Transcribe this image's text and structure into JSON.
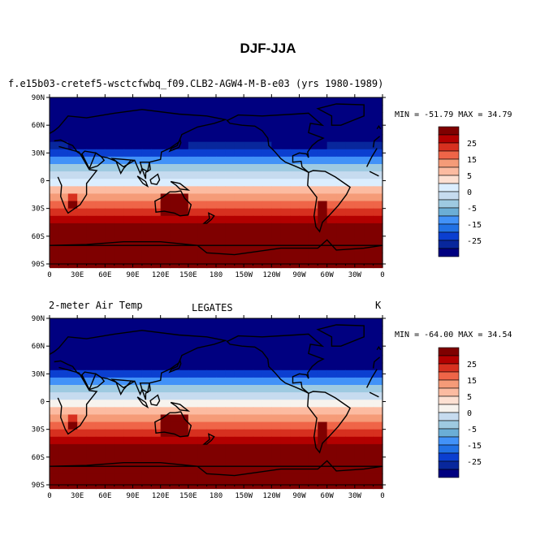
{
  "figure_title": "DJF-JJA",
  "panels": [
    {
      "left_title": "f.e15b03-cretef5-wsctcfwbq_f09.CLB2-AGW4-M-B-e03 (yrs 1980-1989)",
      "center_title": "",
      "right_label": "",
      "min_max": "MIN = -51.79 MAX =  34.79"
    },
    {
      "left_title": "2-meter Air Temp",
      "center_title": "LEGATES",
      "right_label": "K",
      "min_max": "MIN = -64.00 MAX =  34.54"
    }
  ],
  "chart_data": [
    {
      "type": "heatmap",
      "projection": "cylindrical equidistant, centered 180",
      "xlim": [
        0,
        360
      ],
      "ylim": [
        -90,
        90
      ],
      "xticklabels": [
        "0",
        "30E",
        "60E",
        "90E",
        "120E",
        "150E",
        "180",
        "150W",
        "120W",
        "90W",
        "60W",
        "30W",
        "0"
      ],
      "yticklabels": [
        "90N",
        "60N",
        "30N",
        "0",
        "30S",
        "60S",
        "90S"
      ],
      "min": -51.79,
      "max": 34.79,
      "colorbar": {
        "levels_labeled": [
          "25",
          "15",
          "5",
          "0",
          "-5",
          "-15",
          "-25"
        ],
        "colors": [
          "#7f0000",
          "#b30000",
          "#d7301f",
          "#ef6548",
          "#f59b78",
          "#fcbba1",
          "#fde0d2",
          "#dbeeff",
          "#c6dbef",
          "#9ecae1",
          "#6baed6",
          "#4292f8",
          "#2171e5",
          "#0b3fd0",
          "#08279c",
          "#000080"
        ]
      }
    },
    {
      "type": "heatmap",
      "projection": "cylindrical equidistant, centered 180",
      "xlim": [
        0,
        360
      ],
      "ylim": [
        -90,
        90
      ],
      "xticklabels": [
        "0",
        "30E",
        "60E",
        "90E",
        "120E",
        "150E",
        "180",
        "150W",
        "120W",
        "90W",
        "60W",
        "30W",
        "0"
      ],
      "yticklabels": [
        "90N",
        "60N",
        "30N",
        "0",
        "30S",
        "60S",
        "90S"
      ],
      "min": -64.0,
      "max": 34.54,
      "colorbar": {
        "levels_labeled": [
          "25",
          "15",
          "5",
          "0",
          "-5",
          "-15",
          "-25"
        ],
        "colors": [
          "#7f0000",
          "#b30000",
          "#d7301f",
          "#ef6548",
          "#f59b78",
          "#fcbba1",
          "#fde0d2",
          "#f7f3ee",
          "#c6dbef",
          "#9ecae1",
          "#6baed6",
          "#4292f8",
          "#2171e5",
          "#0b3fd0",
          "#08279c",
          "#000080"
        ]
      }
    }
  ]
}
